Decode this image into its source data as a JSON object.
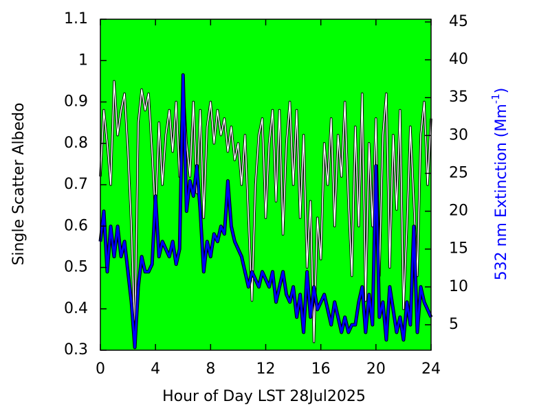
{
  "chart_data": {
    "type": "line",
    "xlabel": "Hour of Day LST 28Jul2025",
    "ylabel": "Single Scatter Albedo",
    "y2label": {
      "text": "532 nm Extinction (Mm",
      "sup": "-1",
      "end": ")"
    },
    "background": "#00ff00",
    "xlim": [
      0,
      24
    ],
    "xticks": [
      0,
      4,
      8,
      12,
      16,
      20,
      24
    ],
    "ylim": [
      0.3,
      1.1
    ],
    "yticks": [
      0.3,
      0.4,
      0.5,
      0.6,
      0.7,
      0.8,
      0.9,
      1,
      1.1
    ],
    "y2lim": [
      1.64,
      45.36
    ],
    "y2ticks": [
      5,
      10,
      15,
      20,
      25,
      30,
      35,
      40,
      45
    ],
    "x": [
      0,
      0.25,
      0.5,
      0.75,
      1,
      1.25,
      1.5,
      1.75,
      2,
      2.25,
      2.5,
      2.75,
      3,
      3.25,
      3.5,
      3.75,
      4,
      4.25,
      4.5,
      4.75,
      5,
      5.25,
      5.5,
      5.75,
      6,
      6.25,
      6.5,
      6.75,
      7,
      7.25,
      7.5,
      7.75,
      8,
      8.25,
      8.5,
      8.75,
      9,
      9.25,
      9.5,
      9.75,
      10,
      10.25,
      10.5,
      10.75,
      11,
      11.25,
      11.5,
      11.75,
      12,
      12.25,
      12.5,
      12.75,
      13,
      13.25,
      13.5,
      13.75,
      14,
      14.25,
      14.5,
      14.75,
      15,
      15.25,
      15.5,
      15.75,
      16,
      16.25,
      16.5,
      16.75,
      17,
      17.25,
      17.5,
      17.75,
      18,
      18.25,
      18.5,
      18.75,
      19,
      19.25,
      19.5,
      19.75,
      20,
      20.25,
      20.5,
      20.75,
      21,
      21.25,
      21.5,
      21.75,
      22,
      22.25,
      22.5,
      22.75,
      23,
      23.25,
      23.5,
      23.75,
      24
    ],
    "series": [
      {
        "color": "#ffffff",
        "axis": "y",
        "values": [
          0.72,
          0.88,
          0.8,
          0.7,
          0.95,
          0.82,
          0.88,
          0.92,
          0.78,
          0.6,
          0.32,
          0.85,
          0.93,
          0.88,
          0.92,
          0.78,
          0.62,
          0.85,
          0.7,
          0.82,
          0.88,
          0.78,
          0.9,
          0.72,
          0.95,
          0.8,
          0.72,
          0.9,
          0.68,
          0.88,
          0.62,
          0.84,
          0.9,
          0.8,
          0.88,
          0.82,
          0.86,
          0.78,
          0.84,
          0.76,
          0.8,
          0.7,
          0.82,
          0.62,
          0.42,
          0.7,
          0.82,
          0.86,
          0.62,
          0.8,
          0.88,
          0.66,
          0.88,
          0.58,
          0.8,
          0.9,
          0.7,
          0.88,
          0.62,
          0.82,
          0.5,
          0.66,
          0.32,
          0.62,
          0.52,
          0.8,
          0.7,
          0.86,
          0.6,
          0.82,
          0.72,
          0.9,
          0.66,
          0.48,
          0.84,
          0.6,
          0.92,
          0.42,
          0.8,
          0.6,
          0.86,
          0.48,
          0.82,
          0.92,
          0.5,
          0.82,
          0.64,
          0.88,
          0.4,
          0.6,
          0.84,
          0.66,
          0.48,
          0.82,
          0.9,
          0.7,
          0.86
        ]
      },
      {
        "color": "#0000ff",
        "axis": "y2",
        "values": [
          16,
          20,
          12,
          18,
          14,
          18,
          14,
          16,
          12,
          8,
          2,
          10,
          14,
          12,
          12,
          13,
          22,
          14,
          16,
          15,
          14,
          16,
          13,
          15,
          38,
          20,
          24,
          22,
          26,
          20,
          12,
          16,
          14,
          17,
          16,
          18,
          17,
          24,
          18,
          16,
          15,
          14,
          12,
          10,
          12,
          11,
          10,
          12,
          11,
          10,
          12,
          8,
          10,
          12,
          9,
          8,
          10,
          6,
          9,
          4,
          12,
          6,
          10,
          7,
          8,
          9,
          7,
          5,
          8,
          6,
          4,
          6,
          4,
          5,
          5,
          8,
          10,
          4,
          9,
          5,
          26,
          6,
          8,
          3,
          10,
          7,
          4,
          6,
          3,
          8,
          5,
          18,
          4,
          10,
          8,
          7,
          6
        ]
      }
    ]
  }
}
